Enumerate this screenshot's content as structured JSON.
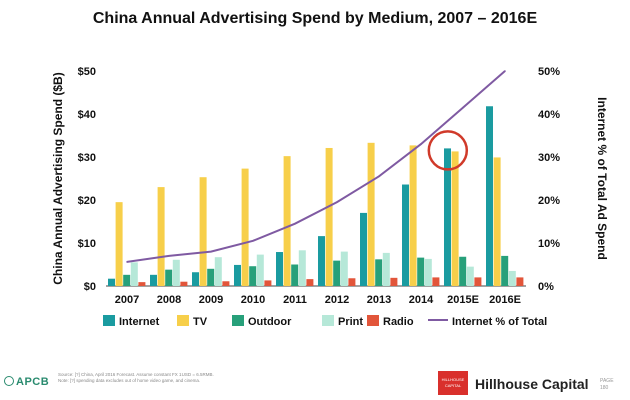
{
  "chart_data": {
    "type": "bar",
    "title": "China Annual Advertising Spend by Medium, 2007 – 2016E",
    "ylabel": "China Annual Advertising Spend ($B)",
    "y2label": "Internet % of Total Ad Spend",
    "ylim": [
      0,
      50
    ],
    "y2lim": [
      0,
      50
    ],
    "yticks": [
      "$0",
      "$10",
      "$20",
      "$30",
      "$40",
      "$50"
    ],
    "y2ticks": [
      "0%",
      "10%",
      "20%",
      "30%",
      "40%",
      "50%"
    ],
    "categories": [
      "2007",
      "2008",
      "2009",
      "2010",
      "2011",
      "2012",
      "2013",
      "2014",
      "2015E",
      "2016E"
    ],
    "series": [
      {
        "name": "Internet",
        "color": "#1a9ba0",
        "values": [
          1.7,
          2.6,
          3.2,
          4.9,
          7.9,
          11.6,
          17.0,
          23.6,
          32.0,
          41.8
        ]
      },
      {
        "name": "TV",
        "color": "#f7cf4a",
        "values": [
          19.5,
          23.0,
          25.3,
          27.3,
          30.2,
          32.1,
          33.3,
          32.7,
          31.3,
          29.9
        ]
      },
      {
        "name": "Outdoor",
        "color": "#27a07a",
        "values": [
          2.6,
          3.8,
          4.0,
          4.6,
          5.0,
          5.9,
          6.2,
          6.6,
          6.8,
          7.0
        ]
      },
      {
        "name": "Print",
        "color": "#b6e8d8",
        "values": [
          5.5,
          6.1,
          6.7,
          7.3,
          8.3,
          8.0,
          7.7,
          6.3,
          4.5,
          3.5
        ]
      },
      {
        "name": "Radio",
        "color": "#e2553a",
        "values": [
          0.9,
          1.0,
          1.1,
          1.3,
          1.6,
          1.8,
          1.9,
          2.0,
          2.0,
          2.0
        ]
      }
    ],
    "line": {
      "name": "Internet % of Total",
      "color": "#7f5aa2",
      "axis": "right",
      "values": [
        5.6,
        7.0,
        8.0,
        10.5,
        14.5,
        19.5,
        25.5,
        33.0,
        41.5,
        50.0
      ]
    },
    "highlight": {
      "category": "2015E",
      "series": "Internet",
      "color": "#d03a2a"
    },
    "legend_position": "bottom",
    "grid": false
  },
  "footer": {
    "note_line1": "Source: [?] China, April 2016 Forecast. Assume constant FX 1USD = 6.5RMB.",
    "note_line2": "Note: [?] spending data excludes out of home video game, and cinema.",
    "left_logo": "APCB",
    "brand_box": "HILLHOUSE CAPITAL",
    "brand_name": "Hillhouse Capital",
    "page_label": "PAGE",
    "page_number": "180"
  }
}
